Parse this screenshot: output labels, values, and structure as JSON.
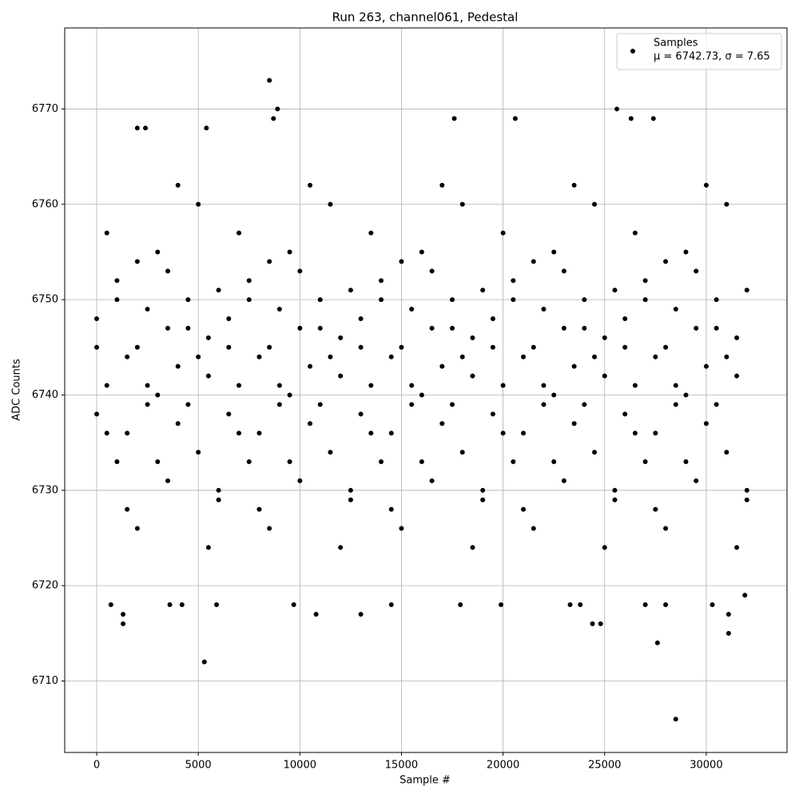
{
  "chart_data": {
    "type": "scatter",
    "title": "Run 263, channel061, Pedestal",
    "x_label": "Sample #",
    "y_label": "ADC Counts",
    "xlim": [
      -1573,
      33975
    ],
    "ylim": [
      6702.5,
      6778.5
    ],
    "xticks": [
      0,
      5000,
      10000,
      15000,
      20000,
      25000,
      30000
    ],
    "yticks": [
      6710,
      6720,
      6730,
      6740,
      6750,
      6760,
      6770
    ],
    "grid": true,
    "legend": "upper right",
    "annotation": "μ = 6742.73, σ = 7.65",
    "series": [
      {
        "name": "Samples",
        "color": "#000000",
        "x": [
          8500,
          5300,
          28500,
          27600,
          31100,
          1300,
          24400,
          24800,
          25600,
          8900,
          17600,
          8700,
          20600,
          26300,
          27400,
          2000,
          2400,
          5400,
          700,
          3600,
          4200,
          5900,
          9700,
          14500,
          17900,
          19900,
          23300,
          23800,
          27000,
          28000,
          30300,
          1300,
          10800,
          13000,
          31100,
          31900,
          0,
          500,
          1000,
          1500,
          2000,
          2500,
          3000,
          3500,
          4000,
          4500,
          5000,
          5500,
          6000,
          6500,
          7000,
          7500,
          8000,
          8500,
          9000,
          9500,
          10000,
          10500,
          11000,
          11500,
          12000,
          12500,
          13000,
          13500,
          14000,
          14500,
          15000,
          15500,
          16000,
          16500,
          17000,
          17500,
          18000,
          18500,
          19000,
          19500,
          20000,
          20500,
          21000,
          21500,
          22000,
          22500,
          23000,
          23500,
          24000,
          24500,
          25000,
          25500,
          26000,
          26500,
          27000,
          27500,
          28000,
          28500,
          29000,
          29500,
          30000,
          30500,
          31000,
          31500,
          32000,
          0,
          500,
          1000,
          1500,
          2000,
          2500,
          3000,
          3500,
          4000,
          4500,
          5000,
          5500,
          6000,
          6500,
          7000,
          7500,
          8000,
          8500,
          9000,
          9500,
          10000,
          10500,
          11000,
          11500,
          12000,
          12500,
          13000,
          13500,
          14000,
          14500,
          15000,
          15500,
          16000,
          16500,
          17000,
          17500,
          18000,
          18500,
          19000,
          19500,
          20000,
          20500,
          21000,
          21500,
          22000,
          22500,
          23000,
          23500,
          24000,
          24500,
          25000,
          25500,
          26000,
          26500,
          27000,
          27500,
          28000,
          28500,
          29000,
          29500,
          30000,
          30500,
          31000,
          31500,
          32000,
          0,
          500,
          1000,
          1500,
          2000,
          2500,
          3000,
          3500,
          4000,
          4500,
          5000,
          5500,
          6000,
          6500,
          7000,
          7500,
          8000,
          8500,
          9000,
          9500,
          10000,
          10500,
          11000,
          11500,
          12000,
          12500,
          13000,
          13500,
          14000,
          14500,
          15000,
          15500,
          16000,
          16500,
          17000,
          17500,
          18000,
          18500,
          19000,
          19500,
          20000,
          20500,
          21000,
          21500,
          22000,
          22500,
          23000,
          23500,
          24000,
          24500,
          25000,
          25500,
          26000,
          26500,
          27000,
          27500,
          28000,
          28500,
          29000,
          29500,
          30000,
          30500,
          31000,
          31500,
          32000
        ],
        "values": [
          6773,
          6712,
          6706,
          6714,
          6715,
          6716,
          6716,
          6716,
          6770,
          6770,
          6769,
          6769,
          6769,
          6769,
          6769,
          6768,
          6768,
          6768,
          6718,
          6718,
          6718,
          6718,
          6718,
          6718,
          6718,
          6718,
          6718,
          6718,
          6718,
          6718,
          6718,
          6717,
          6717,
          6717,
          6717,
          6719,
          6748,
          6741,
          6752,
          6736,
          6745,
          6739,
          6755,
          6731,
          6743,
          6750,
          6734,
          6746,
          6729,
          6748,
          6741,
          6752,
          6736,
          6745,
          6739,
          6755,
          6731,
          6743,
          6750,
          6734,
          6746,
          6729,
          6748,
          6741,
          6752,
          6736,
          6745,
          6739,
          6755,
          6731,
          6743,
          6750,
          6734,
          6746,
          6729,
          6748,
          6741,
          6752,
          6736,
          6745,
          6739,
          6755,
          6731,
          6743,
          6750,
          6734,
          6746,
          6729,
          6748,
          6741,
          6752,
          6736,
          6745,
          6739,
          6755,
          6731,
          6743,
          6750,
          6734,
          6746,
          6729,
          6738,
          6757,
          6733,
          6744,
          6726,
          6749,
          6740,
          6753,
          6737,
          6747,
          6760,
          6742,
          6730,
          6738,
          6757,
          6733,
          6744,
          6726,
          6749,
          6740,
          6753,
          6737,
          6747,
          6760,
          6742,
          6730,
          6738,
          6757,
          6733,
          6744,
          6726,
          6749,
          6740,
          6753,
          6737,
          6747,
          6760,
          6742,
          6730,
          6738,
          6757,
          6733,
          6744,
          6726,
          6749,
          6740,
          6753,
          6737,
          6747,
          6760,
          6742,
          6730,
          6738,
          6757,
          6733,
          6744,
          6726,
          6749,
          6740,
          6753,
          6737,
          6747,
          6760,
          6742,
          6730,
          6745,
          6736,
          6750,
          6728,
          6754,
          6741,
          6733,
          6747,
          6762,
          6739,
          6744,
          6724,
          6751,
          6745,
          6736,
          6750,
          6728,
          6754,
          6741,
          6733,
          6747,
          6762,
          6739,
          6744,
          6724,
          6751,
          6745,
          6736,
          6750,
          6728,
          6754,
          6741,
          6733,
          6747,
          6762,
          6739,
          6744,
          6724,
          6751,
          6745,
          6736,
          6750,
          6728,
          6754,
          6741,
          6733,
          6747,
          6762,
          6739,
          6744,
          6724,
          6751,
          6745,
          6736,
          6750,
          6728,
          6754,
          6741,
          6733,
          6747,
          6762,
          6739,
          6744,
          6724,
          6751
        ]
      }
    ]
  }
}
